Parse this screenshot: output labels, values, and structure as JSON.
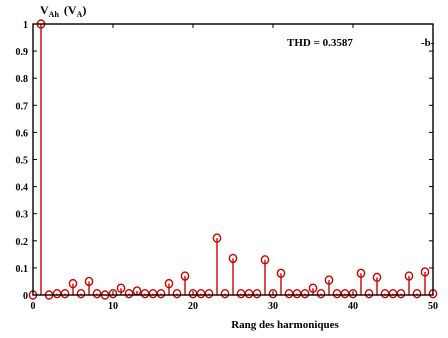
{
  "chart_data": {
    "type": "stem",
    "title": "",
    "ylabel": "V",
    "ylabel_sub": "Ah",
    "ylabel_paren": "(V",
    "ylabel_paren_sub": "A",
    "ylabel_paren_close": ")",
    "xlabel": "Rang des harmoniques",
    "annotation": "THD = 0.3587",
    "panel_label": "-b-",
    "xlim": [
      0,
      50
    ],
    "ylim": [
      0,
      1
    ],
    "x_ticks": [
      0,
      10,
      20,
      30,
      40,
      50
    ],
    "y_ticks": [
      0,
      0.1,
      0.2,
      0.3,
      0.4,
      0.5,
      0.6,
      0.7,
      0.8,
      0.9,
      1
    ],
    "y_tick_labels": [
      "0",
      "0.1",
      "0.2",
      "0.3",
      "0.4",
      "0.5",
      "0.6",
      "0.7",
      "0.8",
      "0.9",
      "1"
    ],
    "color": "#cc0000",
    "series": [
      {
        "x": [
          0,
          1,
          2,
          3,
          4,
          5,
          6,
          7,
          8,
          9,
          10,
          11,
          12,
          13,
          14,
          15,
          16,
          17,
          18,
          19,
          20,
          21,
          22,
          23,
          24,
          25,
          26,
          27,
          28,
          29,
          30,
          31,
          32,
          33,
          34,
          35,
          36,
          37,
          38,
          39,
          40,
          41,
          42,
          43,
          44,
          45,
          46,
          47,
          48,
          49,
          50
        ],
        "values": [
          0,
          1.0,
          0,
          0.005,
          0.005,
          0.042,
          0.005,
          0.05,
          0.005,
          0,
          0.005,
          0.025,
          0.005,
          0.015,
          0.005,
          0.005,
          0.005,
          0.042,
          0.005,
          0.07,
          0.005,
          0.005,
          0.005,
          0.21,
          0.005,
          0.135,
          0.005,
          0.005,
          0.005,
          0.13,
          0.005,
          0.08,
          0.005,
          0.005,
          0.005,
          0.025,
          0.005,
          0.055,
          0.005,
          0.005,
          0.005,
          0.08,
          0.005,
          0.065,
          0.005,
          0.005,
          0.005,
          0.07,
          0.005,
          0.085,
          0.005
        ]
      }
    ]
  }
}
